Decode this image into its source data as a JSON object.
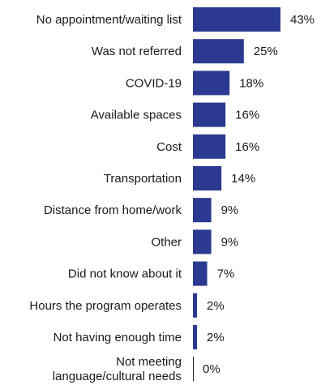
{
  "chart_data": {
    "type": "bar",
    "orientation": "horizontal",
    "title": "",
    "xlabel": "",
    "ylabel": "",
    "xlim": [
      0,
      43
    ],
    "grid": false,
    "legend": "none",
    "value_suffix": "%",
    "bar_color": "#2b3990",
    "categories": [
      "No appointment/waiting list",
      "Was not referred",
      "COVID-19",
      "Available spaces",
      "Cost",
      "Transportation",
      "Distance from home/work",
      "Other",
      "Did not know about it",
      "Hours the program operates",
      "Not having enough time",
      "Not meeting language/cultural needs"
    ],
    "category_label_lines": [
      [
        "No appointment/waiting list"
      ],
      [
        "Was not referred"
      ],
      [
        "COVID-19"
      ],
      [
        "Available spaces"
      ],
      [
        "Cost"
      ],
      [
        "Transportation"
      ],
      [
        "Distance from home/work"
      ],
      [
        "Other"
      ],
      [
        "Did not know about it"
      ],
      [
        "Hours the program operates"
      ],
      [
        "Not having enough time"
      ],
      [
        "Not meeting",
        "language/cultural needs"
      ]
    ],
    "values": [
      43,
      25,
      18,
      16,
      16,
      14,
      9,
      9,
      7,
      2,
      2,
      0
    ],
    "data_labels": [
      "43%",
      "25%",
      "18%",
      "16%",
      "16%",
      "14%",
      "9%",
      "9%",
      "7%",
      "2%",
      "2%",
      "0%"
    ]
  }
}
